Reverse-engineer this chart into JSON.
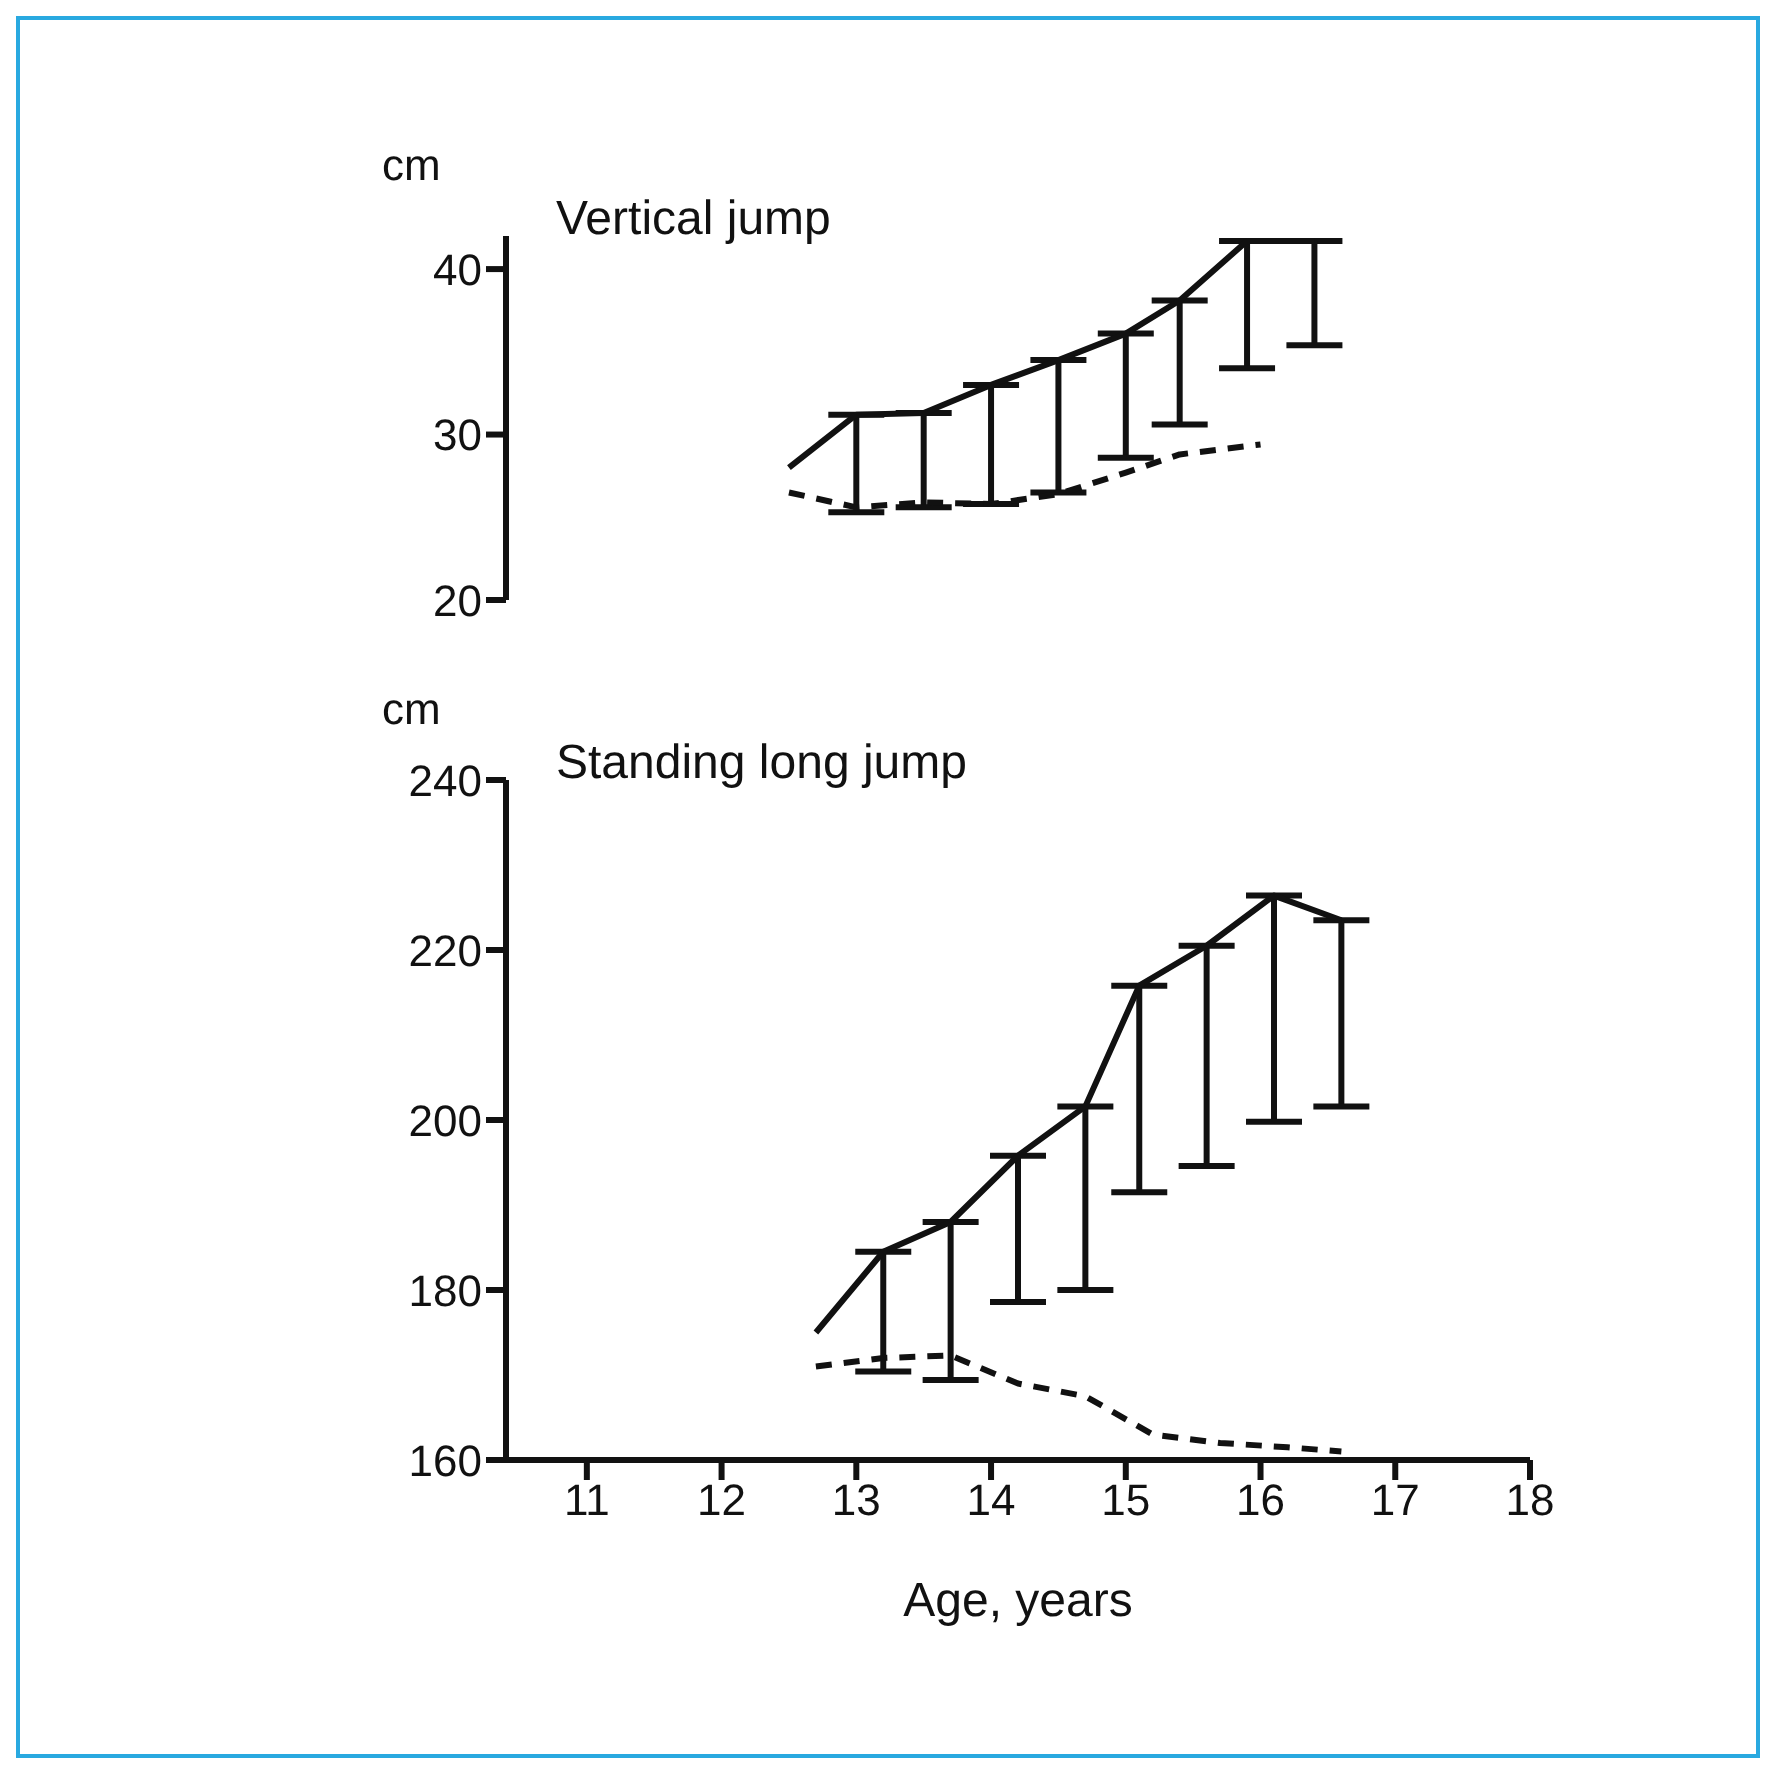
{
  "chart_data": [
    {
      "type": "line",
      "title": "Vertical jump",
      "ylabel": "cm",
      "xlim": [
        10.4,
        18
      ],
      "xticks": [
        11,
        12,
        13,
        14,
        15,
        16,
        17,
        18
      ],
      "ylim": [
        20,
        42
      ],
      "yticks": [
        20,
        30,
        40
      ],
      "tick_labels": "y",
      "grid": false,
      "legend": false,
      "marker": "none",
      "series": [
        {
          "color": "#111111",
          "line_style": "solid",
          "x": [
            12.5,
            13.0,
            13.5,
            14.0,
            14.5,
            15.0,
            15.4,
            15.9,
            16.4
          ],
          "values": [
            28.0,
            31.2,
            31.3,
            33.0,
            34.5,
            36.1,
            38.1,
            41.7,
            41.7
          ],
          "errors": [
            null,
            [
              25.3,
              31.2
            ],
            [
              25.6,
              31.3
            ],
            [
              25.8,
              33.0
            ],
            [
              26.5,
              34.5
            ],
            [
              28.6,
              36.1
            ],
            [
              30.6,
              38.1
            ],
            [
              34.0,
              41.7
            ],
            [
              35.4,
              41.7
            ]
          ]
        },
        {
          "color": "#111111",
          "line_style": "dashed",
          "x": [
            12.5,
            13.0,
            13.5,
            14.0,
            14.5,
            15.0,
            15.4,
            16.0
          ],
          "values": [
            26.5,
            25.6,
            25.9,
            25.8,
            26.4,
            27.7,
            28.8,
            29.4
          ]
        }
      ]
    },
    {
      "type": "line",
      "title": "Standing long jump",
      "ylabel": "cm",
      "xlabel": "Age, years",
      "xlim": [
        10.4,
        18
      ],
      "xticks": [
        11,
        12,
        13,
        14,
        15,
        16,
        17,
        18
      ],
      "ylim": [
        160,
        240
      ],
      "yticks": [
        160,
        180,
        200,
        220,
        240
      ],
      "grid": false,
      "legend": false,
      "marker": "none",
      "series": [
        {
          "color": "#111111",
          "line_style": "solid",
          "x": [
            12.7,
            13.2,
            13.7,
            14.2,
            14.7,
            15.1,
            15.6,
            16.1,
            16.6
          ],
          "values": [
            175,
            184.5,
            188,
            195.8,
            201.6,
            215.8,
            220.5,
            226.4,
            223.5
          ],
          "errors": [
            null,
            [
              170.4,
              184.5
            ],
            [
              169.4,
              188
            ],
            [
              178.6,
              195.8
            ],
            [
              180,
              201.6
            ],
            [
              191.5,
              215.8
            ],
            [
              194.6,
              220.5
            ],
            [
              199.8,
              226.4
            ],
            [
              201.6,
              223.5
            ]
          ]
        },
        {
          "color": "#111111",
          "line_style": "dashed",
          "x": [
            12.7,
            13.2,
            13.7,
            14.2,
            14.7,
            15.2,
            15.7,
            16.2,
            16.6
          ],
          "values": [
            171,
            172,
            172.3,
            169,
            167.5,
            163,
            162,
            161.5,
            161
          ]
        }
      ]
    }
  ]
}
